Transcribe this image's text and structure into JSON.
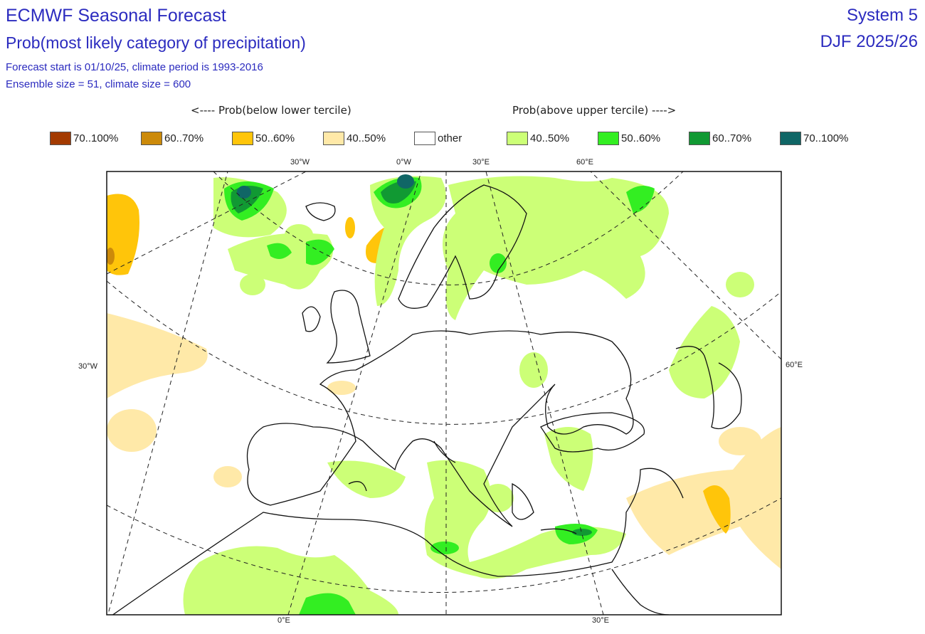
{
  "header": {
    "title": "ECMWF Seasonal Forecast",
    "subtitle": "Prob(most likely category of precipitation)",
    "info1": "Forecast start is 01/10/25, climate period is 1993-2016",
    "info2": "Ensemble size = 51, climate size = 600",
    "system": "System 5",
    "season": "DJF 2025/26"
  },
  "legend": {
    "below_heading": "<---- Prob(below lower tercile)",
    "above_heading": "Prob(above upper tercile) ---->",
    "items": [
      {
        "label": "70..100%",
        "color": "#a33a00"
      },
      {
        "label": "60..70%",
        "color": "#cc8a0a"
      },
      {
        "label": "50..60%",
        "color": "#ffc50a"
      },
      {
        "label": "40..50%",
        "color": "#ffe9a8"
      },
      {
        "label": "other",
        "color": "#ffffff"
      },
      {
        "label": "40..50%",
        "color": "#ccff77"
      },
      {
        "label": "50..60%",
        "color": "#33ee22"
      },
      {
        "label": "60..70%",
        "color": "#119933"
      },
      {
        "label": "70..100%",
        "color": "#106666"
      }
    ]
  },
  "axes": {
    "top": [
      "30°W",
      "0°W",
      "30°E",
      "60°E"
    ],
    "left": "30°W",
    "right": "60°E",
    "bottom": [
      "0°E",
      "30°E"
    ]
  }
}
